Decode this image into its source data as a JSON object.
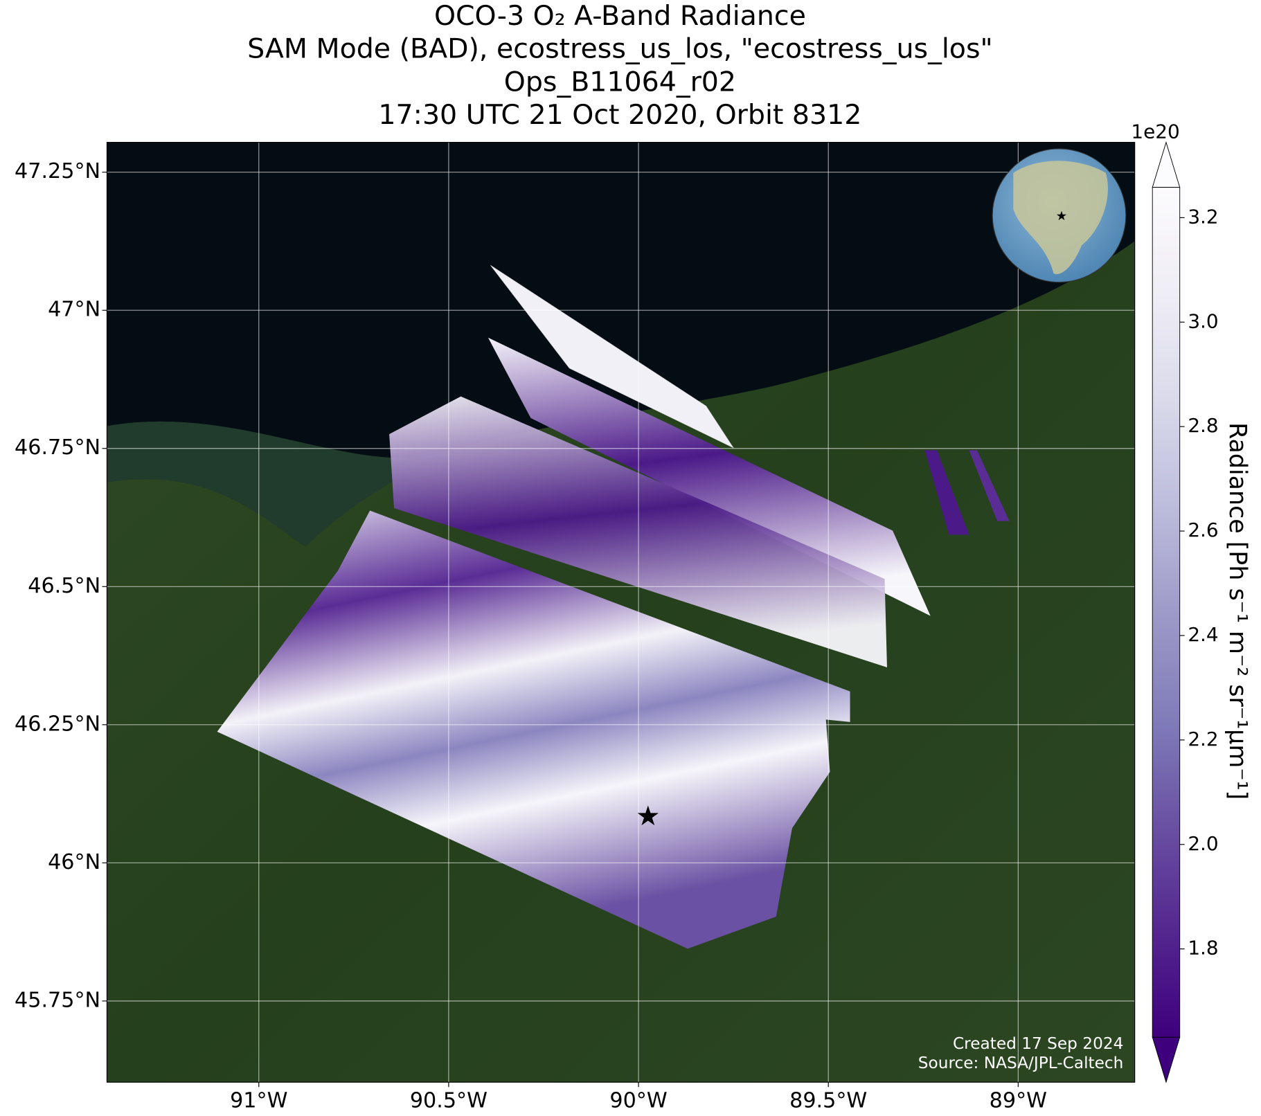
{
  "title": [
    "OCO-3 O₂ A-Band Radiance",
    "SAM Mode (BAD), ecostress_us_los, \"ecostress_us_los\"",
    "Ops_B11064_r02",
    "17:30 UTC 21 Oct 2020, Orbit 8312"
  ],
  "map": {
    "xlim": [
      -91.4,
      -88.693
    ],
    "ylim": [
      45.603,
      47.304
    ],
    "xticks": [
      {
        "value": -91,
        "label": "91°W"
      },
      {
        "value": -90.5,
        "label": "90.5°W"
      },
      {
        "value": -90,
        "label": "90°W"
      },
      {
        "value": -89.5,
        "label": "89.5°W"
      },
      {
        "value": -89,
        "label": "89°W"
      }
    ],
    "yticks": [
      {
        "value": 47.25,
        "label": "47.25°N"
      },
      {
        "value": 47,
        "label": "47°N"
      },
      {
        "value": 46.75,
        "label": "46.75°N"
      },
      {
        "value": 46.5,
        "label": "46.5°N"
      },
      {
        "value": 46.25,
        "label": "46.25°N"
      },
      {
        "value": 46,
        "label": "46°N"
      },
      {
        "value": 45.75,
        "label": "45.75°N"
      }
    ],
    "grid": true,
    "target": {
      "lon": -89.975,
      "lat": 46.081,
      "color": "#ff0000"
    }
  },
  "colorbar": {
    "label": "Radiance [Ph s⁻¹ m⁻² sr⁻¹μm⁻¹]",
    "offset_label": "1e20",
    "lim": [
      1.631,
      3.258
    ],
    "ticks": [
      1.8,
      {
        "value": 2,
        "label": "2.0"
      },
      2.2,
      2.4,
      2.6,
      2.8,
      {
        "value": 3,
        "label": "3.0"
      },
      3.2
    ],
    "colors": [
      "#3f007d",
      "#54278f",
      "#6a51a3",
      "#807dba",
      "#9e9ac8",
      "#bcbddc",
      "#dadaeb",
      "#efedf5",
      "#fcfbfd"
    ]
  },
  "credits": [
    "Created 17 Sep 2024",
    "Source: NASA/JPL-Caltech"
  ]
}
